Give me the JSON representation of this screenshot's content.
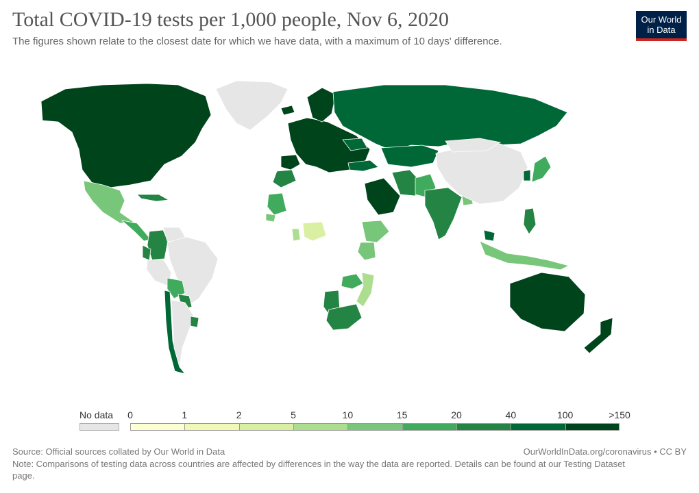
{
  "header": {
    "title": "Total COVID-19 tests per 1,000 people, Nov 6, 2020",
    "subtitle": "The figures shown relate to the closest date for which we have data, with a maximum of 10 days' difference."
  },
  "logo": {
    "line1": "Our World",
    "line2": "in Data",
    "bg_color": "#002147",
    "accent_color": "#ce261e"
  },
  "legend": {
    "no_data_label": "No data",
    "no_data_color": "#e6e6e6",
    "ticks": [
      "0",
      "1",
      "2",
      "5",
      "10",
      "15",
      "20",
      "40",
      "100",
      ">150"
    ],
    "colors": [
      "#ffffd4",
      "#f2f9b4",
      "#d9f0a3",
      "#addd8e",
      "#78c679",
      "#41ab5d",
      "#238443",
      "#006837",
      "#00441b"
    ]
  },
  "footer": {
    "source": "Source: Official sources collated by Our World in Data",
    "url": "OurWorldInData.org/coronavirus • CC BY",
    "note": "Note: Comparisons of testing data across countries are affected by differences in the way the data are reported. Details can be found at our Testing Dataset page."
  },
  "map_data": {
    "type": "choropleth",
    "metric": "Total COVID-19 tests per 1,000 people",
    "regions": [
      {
        "name": "North America",
        "bin": 8
      },
      {
        "name": "Greenland",
        "bin": -1
      },
      {
        "name": "Mexico",
        "bin": 4
      },
      {
        "name": "Central America",
        "bin": 5
      },
      {
        "name": "Cuba",
        "bin": 6
      },
      {
        "name": "Colombia",
        "bin": 6
      },
      {
        "name": "Ecuador",
        "bin": 6
      },
      {
        "name": "Venezuela",
        "bin": -1
      },
      {
        "name": "Brazil",
        "bin": -1
      },
      {
        "name": "Peru",
        "bin": -1
      },
      {
        "name": "Bolivia",
        "bin": 5
      },
      {
        "name": "Paraguay",
        "bin": 6
      },
      {
        "name": "Chile",
        "bin": 7
      },
      {
        "name": "Argentina",
        "bin": -1
      },
      {
        "name": "Uruguay",
        "bin": 6
      },
      {
        "name": "Europe",
        "bin": 8
      },
      {
        "name": "Iberia",
        "bin": 8
      },
      {
        "name": "Iceland",
        "bin": 8
      },
      {
        "name": "Scandinavia",
        "bin": 8
      },
      {
        "name": "Russia",
        "bin": 7
      },
      {
        "name": "Ukraine",
        "bin": 7
      },
      {
        "name": "Turkey",
        "bin": 7
      },
      {
        "name": "Morocco",
        "bin": 6
      },
      {
        "name": "Mauritania",
        "bin": 5
      },
      {
        "name": "Senegal",
        "bin": 4
      },
      {
        "name": "Ghana",
        "bin": 3
      },
      {
        "name": "Nigeria",
        "bin": 2
      },
      {
        "name": "Ethiopia",
        "bin": 4
      },
      {
        "name": "Kenya",
        "bin": 4
      },
      {
        "name": "Zambia",
        "bin": 5
      },
      {
        "name": "Mozambique",
        "bin": 3
      },
      {
        "name": "Namibia",
        "bin": 6
      },
      {
        "name": "South Africa",
        "bin": 6
      },
      {
        "name": "Saudi Arabia",
        "bin": 8
      },
      {
        "name": "Iran",
        "bin": 6
      },
      {
        "name": "Pakistan",
        "bin": 5
      },
      {
        "name": "India",
        "bin": 6
      },
      {
        "name": "Bangladesh",
        "bin": 4
      },
      {
        "name": "Kazakhstan",
        "bin": 7
      },
      {
        "name": "China",
        "bin": -1
      },
      {
        "name": "Mongolia",
        "bin": -1
      },
      {
        "name": "Japan",
        "bin": 5
      },
      {
        "name": "South Korea",
        "bin": 7
      },
      {
        "name": "Philippines",
        "bin": 6
      },
      {
        "name": "Indonesia",
        "bin": 4
      },
      {
        "name": "Malaysia",
        "bin": 7
      },
      {
        "name": "Australia",
        "bin": 8
      },
      {
        "name": "New Zealand",
        "bin": 8
      }
    ]
  }
}
